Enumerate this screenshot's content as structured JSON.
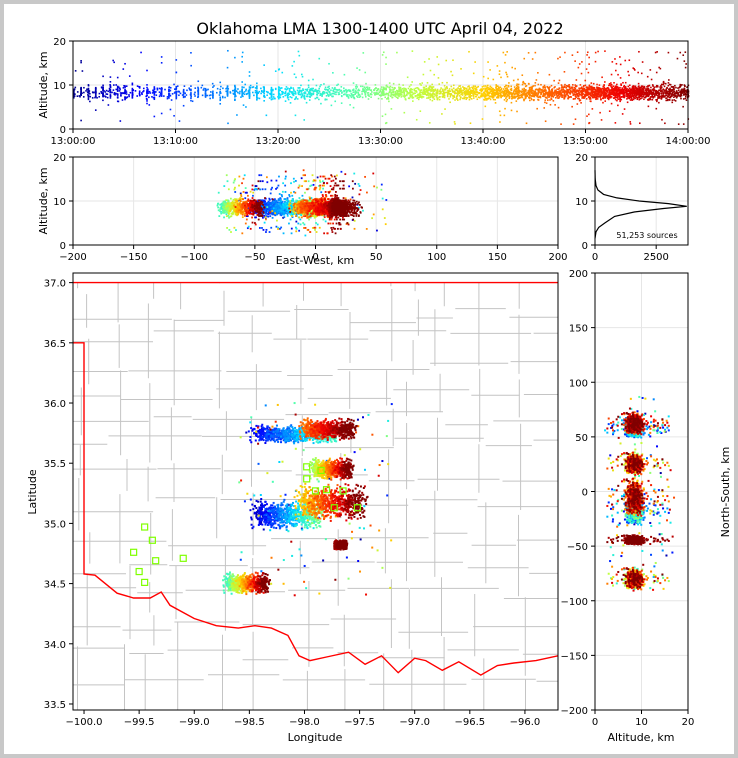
{
  "title": "Oklahoma LMA 1300-1400 UTC April 04, 2022",
  "colors": {
    "jet": [
      "#00008f",
      "#0000ff",
      "#0070ff",
      "#00dfff",
      "#50ffaf",
      "#bfff40",
      "#ffcf00",
      "#ff6000",
      "#ef0000",
      "#800000"
    ],
    "state_border": "#ff0000",
    "county_lines": "#c4c4c4",
    "station_marker": "#7fff00",
    "grid": "#e6e6e6"
  },
  "chart_data": [
    {
      "id": "time-height",
      "type": "scatter",
      "xlabel": "",
      "ylabel": "Altitude, km",
      "xlim_minutes": [
        0,
        60
      ],
      "ylim": [
        0,
        20
      ],
      "x_ticks": [
        "13:00:00",
        "13:10:00",
        "13:20:00",
        "13:30:00",
        "13:40:00",
        "13:50:00",
        "14:00:00"
      ],
      "y_ticks": [
        0,
        10,
        20
      ],
      "color_by": "time",
      "activity_bins": [
        {
          "t0": 0,
          "t1": 5,
          "density": 0.25
        },
        {
          "t0": 5,
          "t1": 10,
          "density": 0.2
        },
        {
          "t0": 10,
          "t1": 15,
          "density": 0.15
        },
        {
          "t0": 15,
          "t1": 20,
          "density": 0.25
        },
        {
          "t0": 20,
          "t1": 30,
          "density": 0.45
        },
        {
          "t0": 30,
          "t1": 40,
          "density": 0.7
        },
        {
          "t0": 40,
          "t1": 50,
          "density": 1.0
        },
        {
          "t0": 50,
          "t1": 56,
          "density": 0.9
        },
        {
          "t0": 56,
          "t1": 60,
          "density": 0.4
        }
      ],
      "mean_altitude_km": 8.5
    },
    {
      "id": "east-west-height",
      "type": "scatter",
      "xlabel": "East-West, km",
      "ylabel": "Altitude, km",
      "xlim": [
        -200,
        200
      ],
      "ylim": [
        0,
        20
      ],
      "x_ticks": [
        -200,
        -150,
        -100,
        -50,
        0,
        50,
        100,
        150,
        200
      ],
      "y_ticks": [
        0,
        10,
        20
      ]
    },
    {
      "id": "altitude-histogram",
      "type": "line",
      "xlabel": "",
      "ylabel": "",
      "xlim": [
        0,
        3800
      ],
      "ylim": [
        0,
        20
      ],
      "x_ticks": [
        0,
        2500
      ],
      "y_ticks": [
        0,
        10,
        20
      ],
      "annotation": "51,253 sources",
      "profile": [
        [
          0,
          1.5
        ],
        [
          40,
          3
        ],
        [
          150,
          4
        ],
        [
          400,
          5
        ],
        [
          800,
          6.5
        ],
        [
          1600,
          7.5
        ],
        [
          2800,
          8.3
        ],
        [
          3750,
          8.8
        ],
        [
          3000,
          9.4
        ],
        [
          1800,
          10
        ],
        [
          900,
          10.7
        ],
        [
          350,
          11.5
        ],
        [
          120,
          12.5
        ],
        [
          40,
          13.5
        ],
        [
          10,
          15
        ],
        [
          0,
          17
        ]
      ]
    },
    {
      "id": "plan-view",
      "type": "scatter",
      "xlabel": "Longitude",
      "ylabel": "Latitude",
      "xlim": [
        -100.1,
        -95.7
      ],
      "ylim": [
        33.45,
        37.08
      ],
      "x_ticks": [
        -100.0,
        -99.5,
        -99.0,
        -98.5,
        -98.0,
        -97.5,
        -97.0,
        -96.5,
        -96.0
      ],
      "y_ticks": [
        33.5,
        34.0,
        34.5,
        35.0,
        35.5,
        36.0,
        36.5,
        37.0
      ],
      "storm_clusters": [
        {
          "lon": -98.08,
          "lat": 35.74,
          "dlon": 0.35,
          "dlat": 0.06,
          "tmin": 0.05,
          "tmax": 0.4
        },
        {
          "lon": -97.78,
          "lat": 35.78,
          "dlon": 0.22,
          "dlat": 0.07,
          "tmin": 0.7,
          "tmax": 1.0
        },
        {
          "lon": -97.75,
          "lat": 35.45,
          "dlon": 0.17,
          "dlat": 0.07,
          "tmin": 0.45,
          "tmax": 1.0
        },
        {
          "lon": -98.15,
          "lat": 35.07,
          "dlon": 0.28,
          "dlat": 0.1,
          "tmin": 0.0,
          "tmax": 0.45
        },
        {
          "lon": -97.75,
          "lat": 35.17,
          "dlon": 0.28,
          "dlat": 0.12,
          "tmin": 0.6,
          "tmax": 1.0
        },
        {
          "lon": -98.52,
          "lat": 34.5,
          "dlon": 0.18,
          "dlat": 0.07,
          "tmin": 0.35,
          "tmax": 1.0
        },
        {
          "lon": -97.67,
          "lat": 34.82,
          "dlon": 0.05,
          "dlat": 0.03,
          "tmin": 0.9,
          "tmax": 1.0
        }
      ],
      "stations": [
        [
          -99.45,
          34.97
        ],
        [
          -99.38,
          34.86
        ],
        [
          -99.55,
          34.76
        ],
        [
          -99.35,
          34.69
        ],
        [
          -99.5,
          34.6
        ],
        [
          -99.45,
          34.51
        ],
        [
          -99.1,
          34.71
        ],
        [
          -97.98,
          35.47
        ],
        [
          -97.85,
          35.44
        ],
        [
          -97.98,
          35.37
        ],
        [
          -97.8,
          35.28
        ],
        [
          -97.9,
          35.27
        ],
        [
          -97.65,
          35.27
        ],
        [
          -97.73,
          35.13
        ],
        [
          -97.52,
          35.13
        ]
      ]
    },
    {
      "id": "north-south-height",
      "type": "scatter",
      "xlabel": "Altitude, km",
      "ylabel": "North-South, km",
      "xlim": [
        0,
        20
      ],
      "ylim": [
        -200,
        200
      ],
      "x_ticks": [
        0,
        10,
        20
      ],
      "y_ticks": [
        -200,
        -150,
        -100,
        -50,
        0,
        50,
        100,
        150,
        200
      ]
    }
  ]
}
